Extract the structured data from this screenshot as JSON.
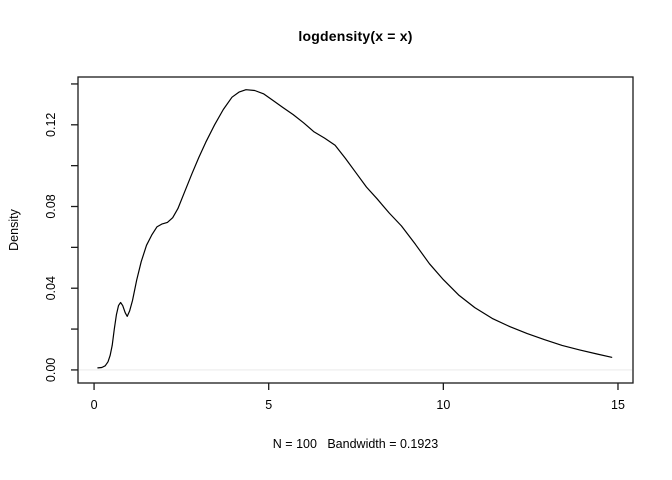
{
  "figure": {
    "background": "#ffffff"
  },
  "chart_data": {
    "type": "line",
    "title": "logdensity(x = x)",
    "xlabel": "N = 100   Bandwidth = 0.1923",
    "ylabel": "Density",
    "grid": false,
    "legend": "none",
    "line_color": "#000000",
    "axis_color": "#1a1a1a",
    "baseline_color": "#ececec",
    "xlim": [
      -0.46,
      15.43
    ],
    "ylim": [
      -0.0064,
      0.1434
    ],
    "x_axis": {
      "ticks": [
        {
          "value": 0,
          "label": "0"
        },
        {
          "value": 5,
          "label": "5"
        },
        {
          "value": 10,
          "label": "10"
        },
        {
          "value": 15,
          "label": "15"
        }
      ]
    },
    "y_axis": {
      "ticks": [
        {
          "value": 0.0,
          "label": "0.00"
        },
        {
          "value": 0.02,
          "label": ""
        },
        {
          "value": 0.04,
          "label": "0.04"
        },
        {
          "value": 0.06,
          "label": ""
        },
        {
          "value": 0.08,
          "label": "0.08"
        },
        {
          "value": 0.1,
          "label": ""
        },
        {
          "value": 0.12,
          "label": "0.12"
        },
        {
          "value": 0.14,
          "label": ""
        }
      ]
    },
    "baseline_y": 0,
    "series": [
      {
        "name": "kernel-density-estimate",
        "x": [
          0.11,
          0.22,
          0.32,
          0.4,
          0.46,
          0.52,
          0.58,
          0.64,
          0.7,
          0.76,
          0.82,
          0.89,
          0.95,
          1.02,
          1.1,
          1.22,
          1.35,
          1.5,
          1.65,
          1.8,
          1.95,
          2.1,
          2.25,
          2.4,
          2.6,
          2.8,
          3.0,
          3.2,
          3.45,
          3.7,
          3.95,
          4.15,
          4.35,
          4.6,
          4.85,
          5.1,
          5.4,
          5.7,
          6.0,
          6.3,
          6.6,
          6.9,
          7.2,
          7.5,
          7.8,
          8.1,
          8.45,
          8.8,
          9.2,
          9.6,
          10.0,
          10.45,
          10.9,
          11.4,
          11.9,
          12.4,
          12.9,
          13.4,
          13.9,
          14.4,
          14.82
        ],
        "y": [
          0.001,
          0.0012,
          0.002,
          0.004,
          0.007,
          0.012,
          0.02,
          0.027,
          0.0315,
          0.033,
          0.0315,
          0.028,
          0.0262,
          0.029,
          0.034,
          0.044,
          0.053,
          0.061,
          0.066,
          0.07,
          0.0715,
          0.0722,
          0.0745,
          0.079,
          0.0875,
          0.096,
          0.104,
          0.1115,
          0.12,
          0.1275,
          0.1335,
          0.136,
          0.1372,
          0.1368,
          0.1352,
          0.1322,
          0.1285,
          0.125,
          0.121,
          0.1165,
          0.1135,
          0.11,
          0.1035,
          0.0965,
          0.0895,
          0.0838,
          0.0768,
          0.0705,
          0.0615,
          0.052,
          0.0442,
          0.0365,
          0.0305,
          0.0252,
          0.0212,
          0.0178,
          0.0148,
          0.012,
          0.0098,
          0.0078,
          0.0062
        ]
      }
    ]
  }
}
